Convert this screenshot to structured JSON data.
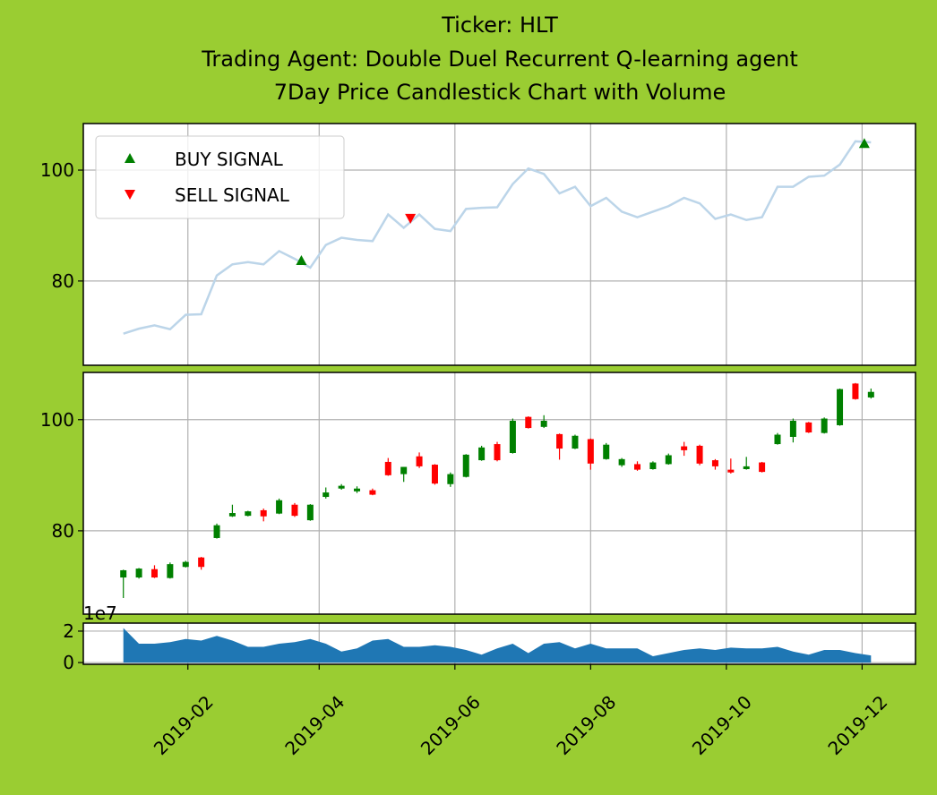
{
  "chart_data": [
    {
      "type": "line",
      "title": [
        "Ticker: HLT",
        "Trading Agent: Double Duel Recurrent Q-learning agent",
        "7Day Price Candlestick Chart with Volume"
      ],
      "x": [
        "2019-01-03",
        "2019-01-10",
        "2019-01-17",
        "2019-01-24",
        "2019-01-31",
        "2019-02-07",
        "2019-02-14",
        "2019-02-21",
        "2019-02-28",
        "2019-03-07",
        "2019-03-14",
        "2019-03-21",
        "2019-03-28",
        "2019-04-04",
        "2019-04-11",
        "2019-04-18",
        "2019-04-25",
        "2019-05-02",
        "2019-05-09",
        "2019-05-16",
        "2019-05-23",
        "2019-05-30",
        "2019-06-06",
        "2019-06-13",
        "2019-06-20",
        "2019-06-27",
        "2019-07-04",
        "2019-07-11",
        "2019-07-18",
        "2019-07-25",
        "2019-08-01",
        "2019-08-08",
        "2019-08-15",
        "2019-08-22",
        "2019-08-29",
        "2019-09-05",
        "2019-09-12",
        "2019-09-19",
        "2019-09-26",
        "2019-10-03",
        "2019-10-10",
        "2019-10-17",
        "2019-10-24",
        "2019-10-31",
        "2019-11-07",
        "2019-11-14",
        "2019-11-21",
        "2019-11-28",
        "2019-12-05"
      ],
      "series": [
        {
          "color": "#bcd5e9",
          "values": [
            70.5,
            71.4,
            72.0,
            71.3,
            73.9,
            74.0,
            81.0,
            83.0,
            83.4,
            83.0,
            85.4,
            84.0,
            82.4,
            86.5,
            87.8,
            87.4,
            87.2,
            92.0,
            89.6,
            92.0,
            89.4,
            89.0,
            93.0,
            93.2,
            93.3,
            97.5,
            100.3,
            99.3,
            95.8,
            97.0,
            93.5,
            95.0,
            92.5,
            91.5,
            92.5,
            93.5,
            95.0,
            94.0,
            91.2,
            92.0,
            91.0,
            91.5,
            97.0,
            97.0,
            98.8,
            99.0,
            101.0,
            105.2,
            105.0
          ]
        }
      ],
      "signals": [
        {
          "name": "BUY SIGNAL",
          "color": "green",
          "marker": "triangle-up",
          "x": [
            "2019-03-24",
            "2019-12-02"
          ],
          "values": [
            83.7,
            104.8
          ]
        },
        {
          "name": "SELL SIGNAL",
          "color": "red",
          "marker": "triangle-down",
          "x": [
            "2019-05-12"
          ],
          "values": [
            91.3
          ]
        }
      ],
      "legend": "upper left",
      "grid": true,
      "ylim": [
        64.8,
        108.4
      ],
      "yticks": [
        80,
        100
      ]
    },
    {
      "type": "candlestick",
      "x": [
        "2019-01-03",
        "2019-01-10",
        "2019-01-17",
        "2019-01-24",
        "2019-01-31",
        "2019-02-07",
        "2019-02-14",
        "2019-02-21",
        "2019-02-28",
        "2019-03-07",
        "2019-03-14",
        "2019-03-21",
        "2019-03-28",
        "2019-04-04",
        "2019-04-11",
        "2019-04-18",
        "2019-04-25",
        "2019-05-02",
        "2019-05-09",
        "2019-05-16",
        "2019-05-23",
        "2019-05-30",
        "2019-06-06",
        "2019-06-13",
        "2019-06-20",
        "2019-06-27",
        "2019-07-04",
        "2019-07-11",
        "2019-07-18",
        "2019-07-25",
        "2019-08-01",
        "2019-08-08",
        "2019-08-15",
        "2019-08-22",
        "2019-08-29",
        "2019-09-05",
        "2019-09-12",
        "2019-09-19",
        "2019-09-26",
        "2019-10-03",
        "2019-10-10",
        "2019-10-17",
        "2019-10-24",
        "2019-10-31",
        "2019-11-07",
        "2019-11-14",
        "2019-11-21",
        "2019-11-28",
        "2019-12-05"
      ],
      "open": [
        71.6,
        71.6,
        73.1,
        71.5,
        73.5,
        75.2,
        78.7,
        82.6,
        82.7,
        83.7,
        83.1,
        84.7,
        81.9,
        86.1,
        87.6,
        87.1,
        87.3,
        92.4,
        90.2,
        93.4,
        91.9,
        88.4,
        89.7,
        92.7,
        95.6,
        94.0,
        100.5,
        98.7,
        97.4,
        94.8,
        96.5,
        92.9,
        91.8,
        92.0,
        91.1,
        92.0,
        95.2,
        95.3,
        92.7,
        91.0,
        91.1,
        92.3,
        95.6,
        96.9,
        99.5,
        97.6,
        99.0,
        106.5,
        104.0
      ],
      "high": [
        73.0,
        73.3,
        73.8,
        74.3,
        74.6,
        75.3,
        81.3,
        84.7,
        83.6,
        84.0,
        85.8,
        85.0,
        84.8,
        87.8,
        88.4,
        88.0,
        87.6,
        93.1,
        91.5,
        94.1,
        92.0,
        90.5,
        93.8,
        95.3,
        96.0,
        100.2,
        100.6,
        100.8,
        97.5,
        97.3,
        96.6,
        95.8,
        93.1,
        92.5,
        92.5,
        93.9,
        96.0,
        95.5,
        92.9,
        93.0,
        93.3,
        92.4,
        97.6,
        100.2,
        99.6,
        100.4,
        105.6,
        106.6,
        105.6
      ],
      "low": [
        67.9,
        71.4,
        71.5,
        71.4,
        73.4,
        73.0,
        78.6,
        82.5,
        82.6,
        81.7,
        83.0,
        82.5,
        81.8,
        85.8,
        87.4,
        86.8,
        86.4,
        89.9,
        88.8,
        91.3,
        88.3,
        87.9,
        89.6,
        92.6,
        92.5,
        93.9,
        98.4,
        98.5,
        92.8,
        94.7,
        91.0,
        92.8,
        91.5,
        90.8,
        91.0,
        91.9,
        93.5,
        91.8,
        91.0,
        90.3,
        91.0,
        90.5,
        95.5,
        95.9,
        97.6,
        97.5,
        98.9,
        103.6,
        103.8
      ],
      "close": [
        72.9,
        73.2,
        71.6,
        74.0,
        74.4,
        73.5,
        81.0,
        83.2,
        83.5,
        82.6,
        85.5,
        82.7,
        84.7,
        86.9,
        88.1,
        87.6,
        86.5,
        90.0,
        91.5,
        91.6,
        88.5,
        90.2,
        93.7,
        95.0,
        92.7,
        99.8,
        98.5,
        99.8,
        94.8,
        97.1,
        92.1,
        95.5,
        92.9,
        91.0,
        92.3,
        93.6,
        94.5,
        92.1,
        91.6,
        90.5,
        91.6,
        90.6,
        97.3,
        99.8,
        97.7,
        100.2,
        105.5,
        103.7,
        105.0
      ],
      "up_color": "green",
      "down_color": "red",
      "grid": true,
      "ylim": [
        65.0,
        108.5
      ],
      "yticks": [
        80,
        100
      ]
    },
    {
      "type": "area",
      "x": [
        "2019-01-03",
        "2019-01-10",
        "2019-01-17",
        "2019-01-24",
        "2019-01-31",
        "2019-02-07",
        "2019-02-14",
        "2019-02-21",
        "2019-02-28",
        "2019-03-07",
        "2019-03-14",
        "2019-03-21",
        "2019-03-28",
        "2019-04-04",
        "2019-04-11",
        "2019-04-18",
        "2019-04-25",
        "2019-05-02",
        "2019-05-09",
        "2019-05-16",
        "2019-05-23",
        "2019-05-30",
        "2019-06-06",
        "2019-06-13",
        "2019-06-20",
        "2019-06-27",
        "2019-07-04",
        "2019-07-11",
        "2019-07-18",
        "2019-07-25",
        "2019-08-01",
        "2019-08-08",
        "2019-08-15",
        "2019-08-22",
        "2019-08-29",
        "2019-09-05",
        "2019-09-12",
        "2019-09-19",
        "2019-09-26",
        "2019-10-03",
        "2019-10-10",
        "2019-10-17",
        "2019-10-24",
        "2019-10-31",
        "2019-11-07",
        "2019-11-14",
        "2019-11-21",
        "2019-11-28",
        "2019-12-05"
      ],
      "values": [
        2.2,
        1.2,
        1.2,
        1.3,
        1.5,
        1.4,
        1.7,
        1.4,
        1.0,
        1.0,
        1.2,
        1.3,
        1.5,
        1.2,
        0.7,
        0.9,
        1.4,
        1.5,
        1.0,
        1.0,
        1.1,
        1.0,
        0.8,
        0.5,
        0.9,
        1.2,
        0.6,
        1.2,
        1.3,
        0.9,
        1.2,
        0.9,
        0.9,
        0.9,
        0.4,
        0.6,
        0.8,
        0.9,
        0.8,
        0.95,
        0.9,
        0.9,
        1.0,
        0.7,
        0.5,
        0.8,
        0.8,
        0.6,
        0.45
      ],
      "color": "#1f77b4",
      "offset_text": "1e7",
      "grid": true,
      "ylim": [
        -0.11,
        2.51
      ],
      "yticks": [
        0,
        2
      ],
      "xlim": [
        "2018-12-16",
        "2019-12-25"
      ],
      "xticks": [
        "2019-02",
        "2019-04",
        "2019-06",
        "2019-08",
        "2019-10",
        "2019-12"
      ]
    }
  ]
}
